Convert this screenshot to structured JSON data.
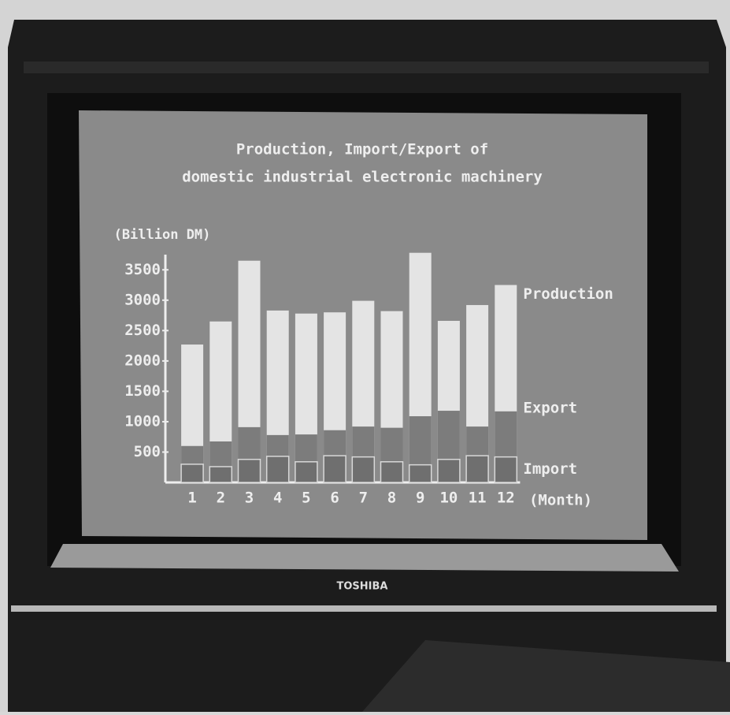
{
  "chart_data": {
    "type": "bar",
    "title": "Production, Import/Export of",
    "subtitle": "domestic industrial electronic machinery",
    "y_label": "(Billion DM)",
    "x_label": "(Month)",
    "categories": [
      "1",
      "2",
      "3",
      "4",
      "5",
      "6",
      "7",
      "8",
      "9",
      "10",
      "11",
      "12"
    ],
    "series": [
      {
        "name": "Production",
        "color": "#e4e4e4",
        "values": [
          2270,
          2650,
          3650,
          2830,
          2780,
          2800,
          2990,
          2820,
          3780,
          2660,
          2920,
          3250
        ]
      },
      {
        "name": "Export",
        "color": "#7c7c7c",
        "values": [
          600,
          675,
          910,
          780,
          790,
          860,
          920,
          900,
          1090,
          1180,
          920,
          1170
        ]
      },
      {
        "name": "Import",
        "color": "#6f6f6f",
        "values": [
          300,
          260,
          380,
          430,
          340,
          440,
          420,
          340,
          290,
          380,
          440,
          420
        ]
      }
    ],
    "ylim": [
      0,
      3750
    ],
    "yticks": [
      500,
      1000,
      1500,
      2000,
      2500,
      3000,
      3500
    ]
  },
  "monitor_brand": "TOSHIBA"
}
